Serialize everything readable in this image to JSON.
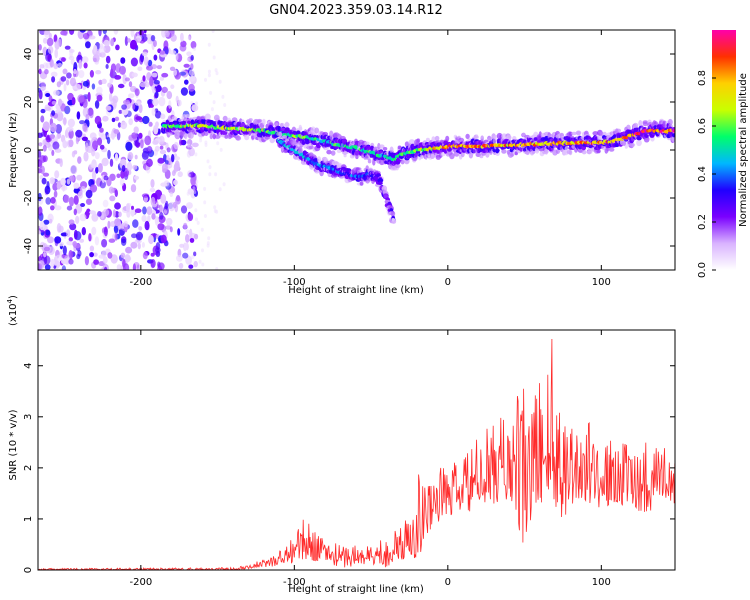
{
  "figure": {
    "title": "GN04.2023.359.03.14.R12"
  },
  "chart_data": [
    {
      "type": "heatmap",
      "xlabel": "Height of straight line (km)",
      "ylabel": "Frequency (Hz)",
      "xlim": [
        -267,
        148
      ],
      "ylim": [
        -50,
        50
      ],
      "xticks": [
        -200,
        -100,
        0,
        100
      ],
      "yticks": [
        -40,
        -20,
        0,
        20,
        40
      ],
      "colorbar": {
        "label": "Normalized spectral amplitude",
        "range": [
          0,
          1
        ],
        "ticks": [
          0.0,
          0.2,
          0.4,
          0.6,
          0.8
        ],
        "colormap": [
          "#ffffff",
          "#d9b3ff",
          "#7a00ff",
          "#2000ff",
          "#00b7ff",
          "#00ff6a",
          "#c9ff00",
          "#ffd000",
          "#ff3000",
          "#ff00aa"
        ]
      },
      "ridge": {
        "x": [
          -185,
          -170,
          -160,
          -150,
          -140,
          -130,
          -120,
          -110,
          -100,
          -90,
          -80,
          -70,
          -60,
          -50,
          -45,
          -40,
          -35,
          -30,
          -20,
          -10,
          0,
          20,
          40,
          60,
          80,
          100,
          110,
          120,
          130,
          148
        ],
        "y": [
          10,
          10,
          10,
          9.5,
          9,
          8.5,
          8,
          7,
          6,
          5,
          3.5,
          2,
          1,
          -1,
          -2,
          -3,
          -4,
          -2,
          0,
          0.5,
          1.5,
          1.5,
          2,
          2.5,
          3,
          3,
          4,
          6,
          8,
          8
        ],
        "peak_amplitude": [
          0.6,
          0.7,
          0.75,
          0.7,
          0.75,
          0.7,
          0.7,
          0.6,
          0.65,
          0.6,
          0.55,
          0.6,
          0.6,
          0.65,
          0.55,
          0.6,
          0.55,
          0.6,
          0.7,
          0.8,
          0.9,
          0.9,
          0.85,
          0.85,
          0.9,
          0.9,
          0.9,
          0.95,
          1.0,
          1.0
        ]
      },
      "secondary_branch": {
        "x": [
          -110,
          -100,
          -95,
          -90,
          -85,
          -80,
          -75,
          -70,
          -65,
          -60,
          -55,
          -50,
          -45,
          -40,
          -35
        ],
        "y": [
          4,
          0,
          -2,
          -4,
          -6,
          -7,
          -8,
          -9,
          -10,
          -11,
          -11,
          -10,
          -12,
          -20,
          -30
        ],
        "peak_amplitude": [
          0.5,
          0.5,
          0.5,
          0.45,
          0.45,
          0.45,
          0.45,
          0.4,
          0.4,
          0.45,
          0.4,
          0.35,
          0.3,
          0.2,
          0.1
        ]
      },
      "noise_region": {
        "x": [
          -267,
          -170
        ],
        "y": [
          -50,
          50
        ],
        "amplitude_range": [
          0.0,
          0.3
        ]
      }
    },
    {
      "type": "line",
      "xlabel": "Height of straight line (km)",
      "ylabel": "SNR (10 * v/v)",
      "y_multiplier": "(x10",
      "y_multiplier_exp": "4",
      "y_multiplier_close": ")",
      "xlim": [
        -267,
        148
      ],
      "ylim": [
        0,
        4.7
      ],
      "xticks": [
        -200,
        -100,
        0,
        100
      ],
      "yticks": [
        0,
        1,
        2,
        3,
        4
      ],
      "color": "#ff2a2a",
      "envelope": {
        "x": [
          -267,
          -180,
          -140,
          -120,
          -105,
          -100,
          -95,
          -90,
          -80,
          -70,
          -60,
          -50,
          -40,
          -30,
          -25,
          -20,
          -15,
          -10,
          0,
          10,
          20,
          30,
          40,
          45,
          50,
          55,
          60,
          65,
          68,
          70,
          75,
          80,
          90,
          100,
          110,
          120,
          130,
          140,
          148
        ],
        "low": [
          0,
          0,
          0,
          0.05,
          0.1,
          0.15,
          0.15,
          0.2,
          0.15,
          0.05,
          0.05,
          0.1,
          0.05,
          0.15,
          0.3,
          0.2,
          0.5,
          0.9,
          1.0,
          1.1,
          1.2,
          1.3,
          1.3,
          1.0,
          0.2,
          1.0,
          1.3,
          1.3,
          1.0,
          1.2,
          1.0,
          1.2,
          1.3,
          1.2,
          1.3,
          1.2,
          1.1,
          1.4,
          1.3
        ],
        "high": [
          0.03,
          0.04,
          0.05,
          0.2,
          0.5,
          0.8,
          1.0,
          0.9,
          0.6,
          0.5,
          0.55,
          0.5,
          0.7,
          0.9,
          1.1,
          2.2,
          1.7,
          2.0,
          2.1,
          2.2,
          2.6,
          2.9,
          3.2,
          3.4,
          3.6,
          3.4,
          3.9,
          4.2,
          4.7,
          3.6,
          3.5,
          3.2,
          3.0,
          2.6,
          2.5,
          2.5,
          2.6,
          2.5,
          2.2
        ]
      }
    }
  ]
}
